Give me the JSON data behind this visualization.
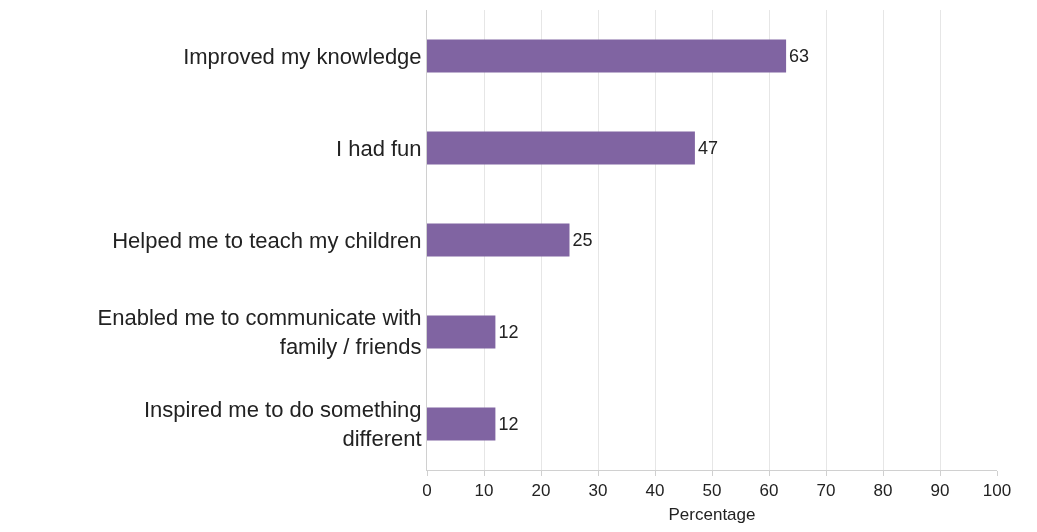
{
  "chart_data": {
    "type": "bar",
    "orientation": "horizontal",
    "xlabel": "Percentage",
    "categories": [
      "Improved my knowledge",
      "I had fun",
      "Helped me to teach my children",
      "Enabled me to communicate with family / friends",
      "Inspired me to do something different"
    ],
    "values": [
      63,
      47,
      25,
      12,
      12
    ],
    "color": "#8064a2",
    "xlim": [
      0,
      100
    ],
    "xticks": [
      0,
      10,
      20,
      30,
      40,
      50,
      60,
      70,
      80,
      90,
      100
    ],
    "grid": "x",
    "data_labels": true
  }
}
